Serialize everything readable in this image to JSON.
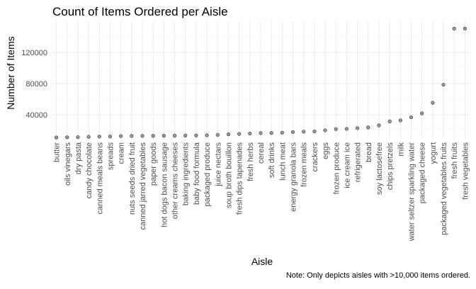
{
  "chart_data": {
    "type": "scatter",
    "title": "Count of Items Ordered per Aisle",
    "xlabel": "Aisle",
    "ylabel": "Number of Items",
    "caption": "Note: Only depicts aisles with >10,000 items ordered.",
    "ylim": [
      8000,
      160000
    ],
    "yticks": [
      40000,
      80000,
      120000
    ],
    "grid": true,
    "categories": [
      "butter",
      "oils vinegars",
      "dry pasta",
      "candy chocolate",
      "canned meals beans",
      "spreads",
      "cream",
      "nuts seeds dried fruit",
      "canned jarred vegetables",
      "paper goods",
      "hot dogs bacon sausage",
      "other creams cheeses",
      "baking ingredients",
      "baby food formula",
      "packaged produce",
      "juice nectars",
      "soup broth bouillon",
      "fresh dips tapenades",
      "fresh herbs",
      "cereal",
      "soft drinks",
      "lunch meat",
      "energy granola bars",
      "frozen meals",
      "crackers",
      "eggs",
      "frozen produce",
      "ice cream ice",
      "refrigerated",
      "bread",
      "soy lactosefree",
      "chips pretzels",
      "milk",
      "water seltzer sparkling water",
      "packaged cheese",
      "yogurt",
      "packaged vegetables fruits",
      "fresh fruits",
      "fresh vegetables"
    ],
    "values": [
      10600,
      10900,
      11000,
      11500,
      11800,
      11900,
      12500,
      12600,
      12700,
      12800,
      12900,
      13000,
      13100,
      13200,
      13500,
      14100,
      14800,
      15200,
      15800,
      16300,
      16500,
      16800,
      17600,
      18200,
      18400,
      19900,
      21500,
      21700,
      22600,
      23600,
      26200,
      31300,
      32600,
      36600,
      41700,
      55200,
      78500,
      150500,
      150600
    ]
  }
}
